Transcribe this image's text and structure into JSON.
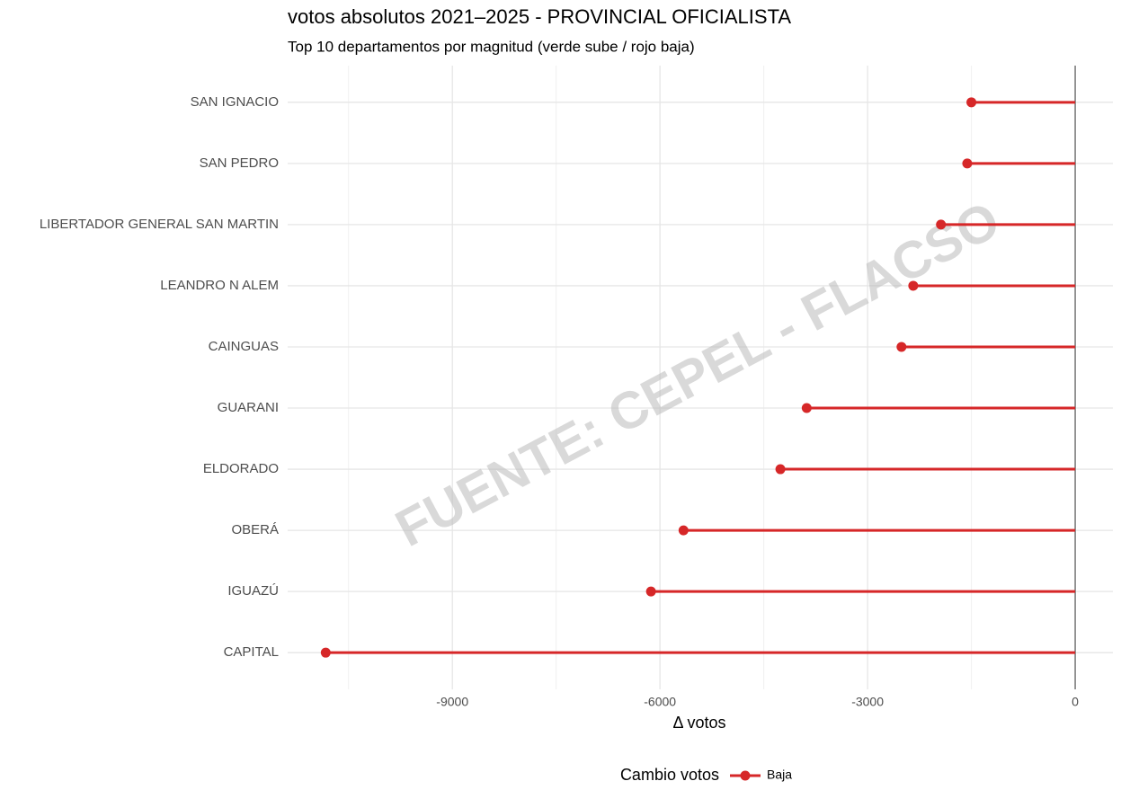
{
  "chart_data": {
    "type": "lollipop",
    "title": "votos absolutos 2021–2025 - PROVINCIAL OFICIALISTA",
    "subtitle": "Top 10 departamentos por magnitud (verde sube / rojo baja)",
    "x_label": "Δ votos",
    "watermark": "FUENTE: CEPEL - FLACSO",
    "categories": [
      "SAN IGNACIO",
      "SAN PEDRO",
      "LIBERTADOR GENERAL SAN MARTIN",
      "LEANDRO N ALEM",
      "CAINGUAS",
      "GUARANI",
      "ELDORADO",
      "OBERÁ",
      "IGUAZÚ",
      "CAPITAL"
    ],
    "series": [
      {
        "name": "Baja",
        "color": "#d62728",
        "values": [
          -1500,
          -1560,
          -1940,
          -2340,
          -2510,
          -3880,
          -4260,
          -5660,
          -6130,
          -10830
        ]
      }
    ],
    "legend_title": "Cambio votos",
    "legend_position": "bottom",
    "xlim": [
      -11380,
      545
    ],
    "xticks": [
      -9000,
      -6000,
      -3000,
      0
    ],
    "grid": true,
    "reference_line": 0
  }
}
